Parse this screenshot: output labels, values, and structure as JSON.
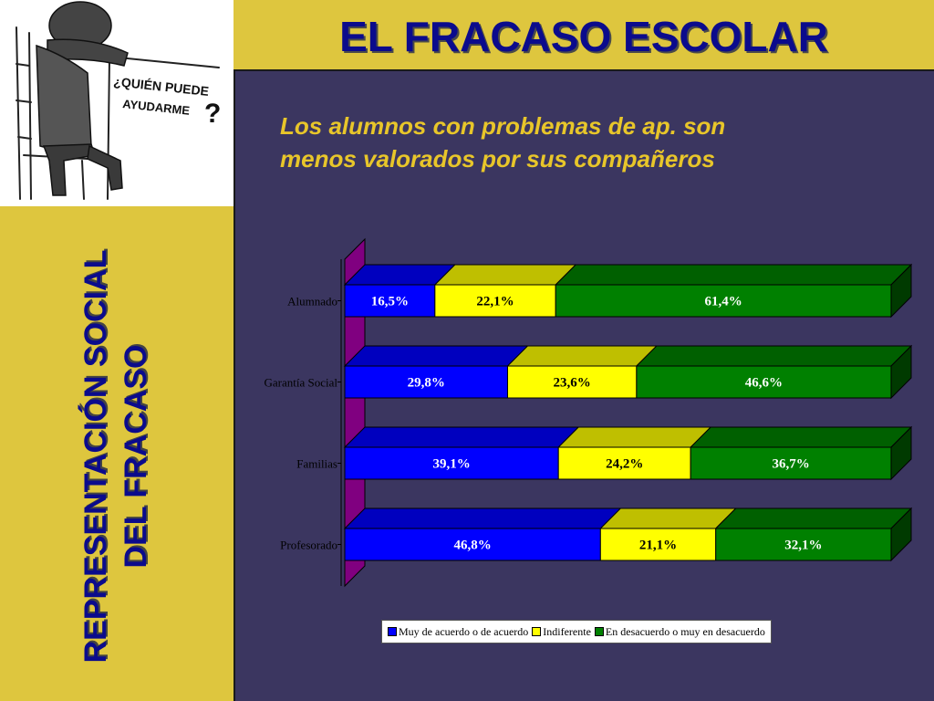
{
  "header": {
    "title": "EL FRACASO ESCOLAR"
  },
  "sidebar": {
    "vertical_title_line1": "REPRESENTACIÓN SOCIAL",
    "vertical_title_line2": "DEL FRACASO",
    "sketch_caption_line1": "¿QUIÉN PUEDE",
    "sketch_caption_line2": "AYUDARME",
    "sketch_caption_mark": "?"
  },
  "subtitle": {
    "line1": "Los alumnos con problemas de ap. son",
    "line2": "menos valorados por sus compañeros"
  },
  "colors": {
    "agree": "#0000ff",
    "indifferent": "#ffff00",
    "disagree": "#008000",
    "floor": "#800080"
  },
  "chart_data": {
    "type": "bar",
    "orientation": "horizontal",
    "stacked": "percent",
    "three_d": true,
    "categories": [
      "Alumnado",
      "Garantía Social",
      "Familias",
      "Profesorado"
    ],
    "series": [
      {
        "name": "Muy de acuerdo o de acuerdo",
        "values": [
          16.5,
          29.8,
          39.1,
          46.8
        ],
        "labels": [
          "16,5%",
          "29,8%",
          "39,1%",
          "46,8%"
        ]
      },
      {
        "name": "Indiferente",
        "values": [
          22.1,
          23.6,
          24.2,
          21.1
        ],
        "labels": [
          "22,1%",
          "23,6%",
          "24,2%",
          "21,1%"
        ]
      },
      {
        "name": "En desacuerdo o muy en desacuerdo",
        "values": [
          61.4,
          46.6,
          36.7,
          32.1
        ],
        "labels": [
          "61,4%",
          "46,6%",
          "36,7%",
          "32,1%"
        ]
      }
    ],
    "xlim": [
      0,
      100
    ],
    "legend_position": "bottom",
    "grid": false
  }
}
